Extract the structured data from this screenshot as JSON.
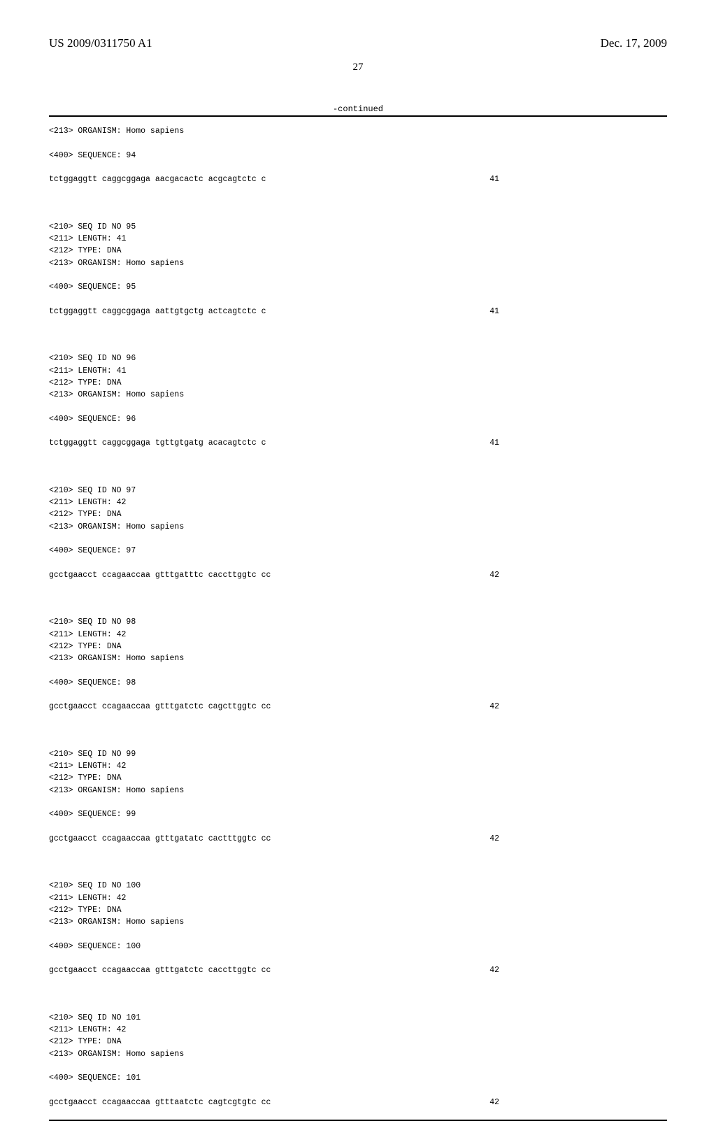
{
  "header": {
    "patent_number": "US 2009/0311750 A1",
    "patent_date": "Dec. 17, 2009"
  },
  "page_number": "27",
  "continued_label": "-continued",
  "sequences": [
    {
      "pre_lines": [
        "<213> ORGANISM: Homo sapiens",
        "",
        "<400> SEQUENCE: 94",
        ""
      ],
      "sequence": "tctggaggtt caggcggaga aacgacactc acgcagtctc c",
      "length": "41"
    },
    {
      "pre_lines": [
        "",
        "",
        "<210> SEQ ID NO 95",
        "<211> LENGTH: 41",
        "<212> TYPE: DNA",
        "<213> ORGANISM: Homo sapiens",
        "",
        "<400> SEQUENCE: 95",
        ""
      ],
      "sequence": "tctggaggtt caggcggaga aattgtgctg actcagtctc c",
      "length": "41"
    },
    {
      "pre_lines": [
        "",
        "",
        "<210> SEQ ID NO 96",
        "<211> LENGTH: 41",
        "<212> TYPE: DNA",
        "<213> ORGANISM: Homo sapiens",
        "",
        "<400> SEQUENCE: 96",
        ""
      ],
      "sequence": "tctggaggtt caggcggaga tgttgtgatg acacagtctc c",
      "length": "41"
    },
    {
      "pre_lines": [
        "",
        "",
        "<210> SEQ ID NO 97",
        "<211> LENGTH: 42",
        "<212> TYPE: DNA",
        "<213> ORGANISM: Homo sapiens",
        "",
        "<400> SEQUENCE: 97",
        ""
      ],
      "sequence": "gcctgaacct ccagaaccaa gtttgatttc caccttggtc cc",
      "length": "42"
    },
    {
      "pre_lines": [
        "",
        "",
        "<210> SEQ ID NO 98",
        "<211> LENGTH: 42",
        "<212> TYPE: DNA",
        "<213> ORGANISM: Homo sapiens",
        "",
        "<400> SEQUENCE: 98",
        ""
      ],
      "sequence": "gcctgaacct ccagaaccaa gtttgatctc cagcttggtc cc",
      "length": "42"
    },
    {
      "pre_lines": [
        "",
        "",
        "<210> SEQ ID NO 99",
        "<211> LENGTH: 42",
        "<212> TYPE: DNA",
        "<213> ORGANISM: Homo sapiens",
        "",
        "<400> SEQUENCE: 99",
        ""
      ],
      "sequence": "gcctgaacct ccagaaccaa gtttgatatc cactttggtc cc",
      "length": "42"
    },
    {
      "pre_lines": [
        "",
        "",
        "<210> SEQ ID NO 100",
        "<211> LENGTH: 42",
        "<212> TYPE: DNA",
        "<213> ORGANISM: Homo sapiens",
        "",
        "<400> SEQUENCE: 100",
        ""
      ],
      "sequence": "gcctgaacct ccagaaccaa gtttgatctc caccttggtc cc",
      "length": "42"
    },
    {
      "pre_lines": [
        "",
        "",
        "<210> SEQ ID NO 101",
        "<211> LENGTH: 42",
        "<212> TYPE: DNA",
        "<213> ORGANISM: Homo sapiens",
        "",
        "<400> SEQUENCE: 101",
        ""
      ],
      "sequence": "gcctgaacct ccagaaccaa gtttaatctc cagtcgtgtc cc",
      "length": "42"
    }
  ]
}
